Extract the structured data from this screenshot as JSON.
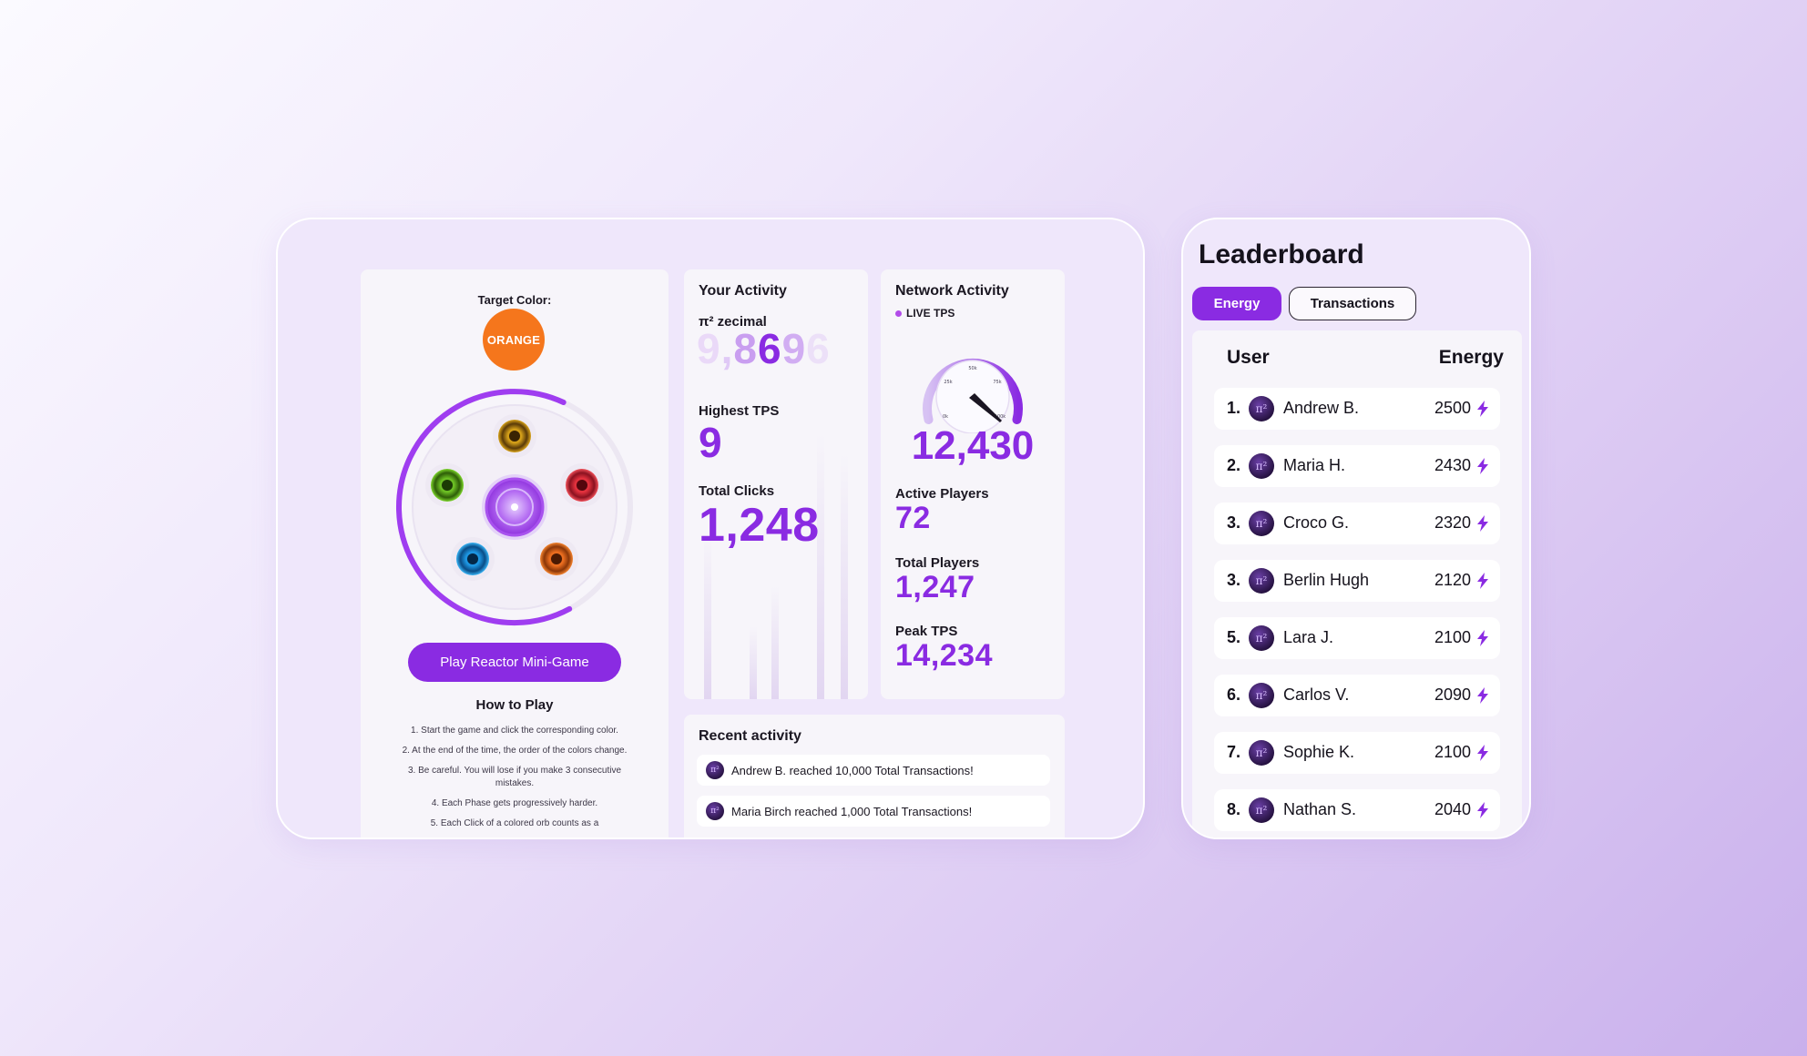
{
  "game": {
    "target_label": "Target Color:",
    "target_color_name": "ORANGE",
    "target_color_hex": "#f5761c",
    "play_button": "Play Reactor Mini-Game",
    "howto_title": "How to Play",
    "howto_steps": [
      "1. Start the game and click the corresponding color.",
      "2. At the end of the time, the order of the colors change.",
      "3. Be careful. You will lose if you make 3 consecutive mistakes.",
      "4. Each Phase gets progressively harder.",
      "5. Each Click of a colored orb counts as a"
    ],
    "orb_colors": [
      "#d9a41a",
      "#6fc425",
      "#e8333f",
      "#f07121",
      "#1e9be8"
    ],
    "accent": "#8a2be2"
  },
  "your_activity": {
    "title": "Your Activity",
    "zecimal_label": "π² zecimal",
    "zecimal_digits": [
      "9",
      ",",
      "8",
      "6",
      "9",
      "6"
    ],
    "highest_tps_label": "Highest TPS",
    "highest_tps": "9",
    "total_clicks_label": "Total Clicks",
    "total_clicks": "1,248"
  },
  "network": {
    "title": "Network Activity",
    "live_label": "LIVE TPS",
    "live_tps": "12,430",
    "gauge_ticks": [
      "0k",
      "25k",
      "50k",
      "75k",
      "100k"
    ],
    "active_players_label": "Active Players",
    "active_players": "72",
    "total_players_label": "Total Players",
    "total_players": "1,247",
    "peak_tps_label": "Peak TPS",
    "peak_tps": "14,234"
  },
  "recent": {
    "title": "Recent activity",
    "items": [
      "Andrew B. reached 10,000 Total Transactions!",
      "Maria Birch reached 1,000 Total Transactions!"
    ]
  },
  "leaderboard": {
    "title": "Leaderboard",
    "tabs": [
      {
        "label": "Energy",
        "active": true
      },
      {
        "label": "Transactions",
        "active": false
      }
    ],
    "col_user": "User",
    "col_energy": "Energy",
    "avatar_glyph": "π²",
    "rows": [
      {
        "rank": "1.",
        "name": "Andrew B.",
        "energy": "2500"
      },
      {
        "rank": "2.",
        "name": "Maria H.",
        "energy": "2430"
      },
      {
        "rank": "3.",
        "name": "Croco G.",
        "energy": "2320"
      },
      {
        "rank": "3.",
        "name": "Berlin Hugh",
        "energy": "2120"
      },
      {
        "rank": "5.",
        "name": "Lara J.",
        "energy": "2100"
      },
      {
        "rank": "6.",
        "name": "Carlos V.",
        "energy": "2090"
      },
      {
        "rank": "7.",
        "name": "Sophie K.",
        "energy": "2100"
      },
      {
        "rank": "8.",
        "name": "Nathan S.",
        "energy": "2040"
      }
    ],
    "bolt_icon": "lightning-icon",
    "bolt_color": "#8a2be2"
  }
}
